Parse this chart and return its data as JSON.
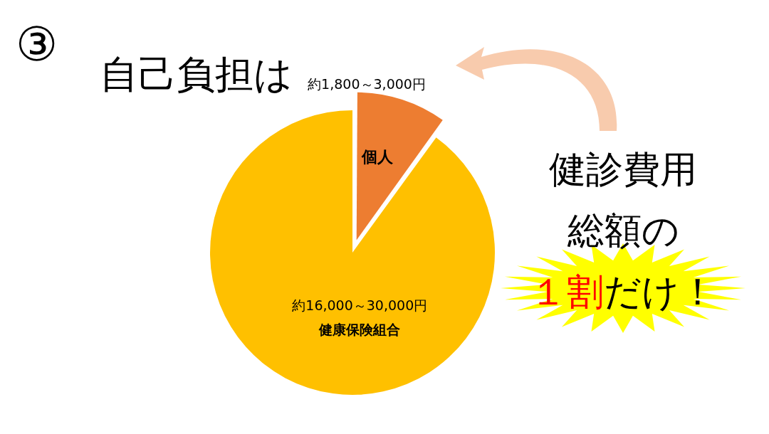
{
  "chart_data": {
    "type": "pie",
    "title": "自己負担は",
    "categories": [
      "個人",
      "健康保険組合"
    ],
    "values": [
      10,
      90
    ],
    "colors": [
      "#ed7d31",
      "#ffc000"
    ],
    "value_labels": [
      "約1,800～3,000円",
      "約16,000～30,000円"
    ],
    "legend": false,
    "annotations": [
      "③",
      "健診費用",
      "総額の",
      "１割だけ！"
    ]
  }
}
